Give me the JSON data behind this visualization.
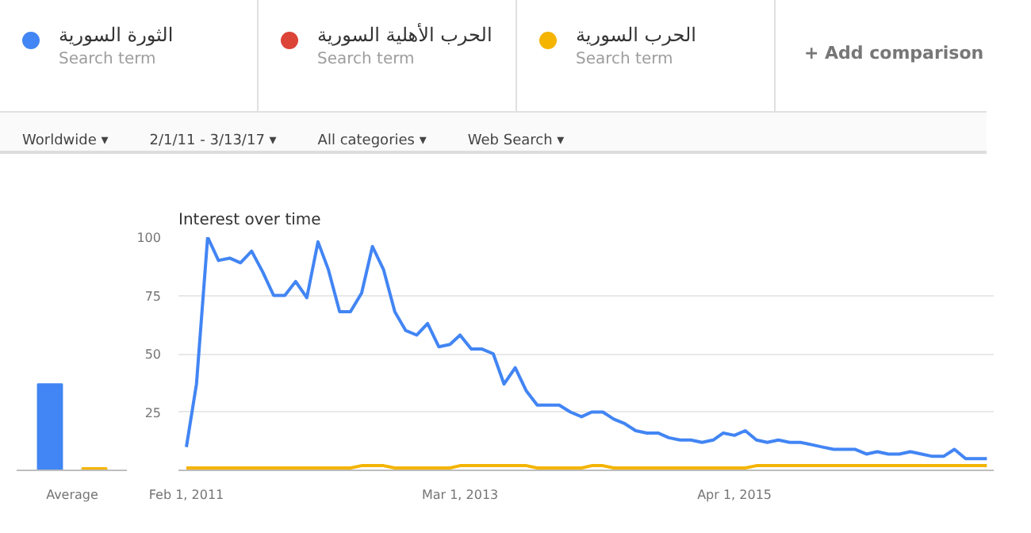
{
  "chart_data": [
    {
      "type": "bar",
      "categories": [
        "Average"
      ],
      "ylim": [
        0,
        100
      ],
      "tick_labels": "x",
      "grid": false,
      "legend": false,
      "series": [
        {
          "color": "#4285f4",
          "values": [
            37
          ]
        },
        {
          "color": "#f4b400",
          "values": [
            1
          ]
        }
      ]
    },
    {
      "type": "line",
      "title": "Interest over time",
      "legend": "top",
      "grid": "y",
      "marker": "none",
      "line_style": "solid",
      "x": [
        "2011-02",
        "2011-03",
        "2011-04",
        "2011-05",
        "2011-06",
        "2011-07",
        "2011-08",
        "2011-09",
        "2011-10",
        "2011-11",
        "2011-12",
        "2012-01",
        "2012-02",
        "2012-03",
        "2012-04",
        "2012-05",
        "2012-06",
        "2012-07",
        "2012-08",
        "2012-09",
        "2012-10",
        "2012-11",
        "2012-12",
        "2013-01",
        "2013-02",
        "2013-03",
        "2013-04",
        "2013-05",
        "2013-06",
        "2013-07",
        "2013-08",
        "2013-09",
        "2013-10",
        "2013-11",
        "2013-12",
        "2014-01",
        "2014-02",
        "2014-03",
        "2014-04",
        "2014-05",
        "2014-06",
        "2014-07",
        "2014-08",
        "2014-09",
        "2014-10",
        "2014-11",
        "2014-12",
        "2015-01",
        "2015-02",
        "2015-03",
        "2015-04",
        "2015-05",
        "2015-06",
        "2015-07",
        "2015-08",
        "2015-09",
        "2015-10",
        "2015-11",
        "2015-12",
        "2016-01",
        "2016-02",
        "2016-03",
        "2016-04",
        "2016-05",
        "2016-06",
        "2016-07",
        "2016-08",
        "2016-09",
        "2016-10",
        "2016-11",
        "2016-12",
        "2017-01",
        "2017-02",
        "2017-03"
      ],
      "xlim": [
        "2011-01-10",
        "2017-03-20"
      ],
      "xticks": [
        {
          "value": "2011-02",
          "label": "Feb 1, 2011"
        },
        {
          "value": "2013-03",
          "label": "Mar 1, 2013"
        },
        {
          "value": "2015-04",
          "label": "Apr 1, 2015"
        }
      ],
      "ylim": [
        0,
        100
      ],
      "yticks": [
        {
          "value": 0,
          "label": null
        },
        25,
        50,
        75,
        100
      ],
      "series": [
        {
          "name": "الثورة السورية",
          "color": "#4285f4",
          "values": [
            10,
            37,
            100,
            90,
            91,
            89,
            94,
            85,
            75,
            75,
            81,
            74,
            98,
            86,
            68,
            68,
            76,
            96,
            86,
            68,
            60,
            58,
            63,
            53,
            54,
            58,
            52,
            52,
            50,
            37,
            44,
            34,
            28,
            28,
            28,
            25,
            23,
            25,
            25,
            22,
            20,
            17,
            16,
            16,
            14,
            13,
            13,
            12,
            13,
            16,
            15,
            17,
            13,
            12,
            13,
            12,
            12,
            11,
            10,
            9,
            9,
            9,
            7,
            8,
            7,
            7,
            8,
            7,
            6,
            6,
            9,
            5,
            5,
            5
          ]
        },
        {
          "name": "الحرب الأهلية السورية",
          "color": "#db4437",
          "values": [
            null,
            null,
            null,
            null,
            null,
            null,
            null,
            null,
            null,
            null,
            null,
            null,
            null,
            null,
            null,
            null,
            null,
            null,
            null,
            null,
            null,
            null,
            null,
            null,
            null,
            null,
            null,
            null,
            null,
            null,
            null,
            null,
            null,
            null,
            null,
            null,
            null,
            null,
            null,
            null,
            null,
            null,
            null,
            null,
            null,
            null,
            null,
            null,
            null,
            null,
            null,
            null,
            null,
            null,
            null,
            null,
            null,
            null,
            null,
            null,
            null,
            null,
            null,
            null,
            null,
            null,
            null,
            null,
            null,
            null,
            null,
            null,
            null,
            null
          ]
        },
        {
          "name": "الحرب السورية",
          "color": "#f4b400",
          "values": [
            1,
            1,
            1,
            1,
            1,
            1,
            1,
            1,
            1,
            1,
            1,
            1,
            1,
            1,
            1,
            1,
            2,
            2,
            2,
            1,
            1,
            1,
            1,
            1,
            1,
            2,
            2,
            2,
            2,
            2,
            2,
            2,
            1,
            1,
            1,
            1,
            1,
            2,
            2,
            1,
            1,
            1,
            1,
            1,
            1,
            1,
            1,
            1,
            1,
            1,
            1,
            1,
            2,
            2,
            2,
            2,
            2,
            2,
            2,
            2,
            2,
            2,
            2,
            2,
            2,
            2,
            2,
            2,
            2,
            2,
            2,
            2,
            2,
            2
          ]
        }
      ],
      "annotations": [
        "Search term",
        "Search term",
        "Search term",
        "+   Add comparison",
        "Worldwide ▾",
        "2/1/11 - 3/13/17 ▾",
        "All categories ▾",
        "Web Search ▾"
      ]
    }
  ]
}
